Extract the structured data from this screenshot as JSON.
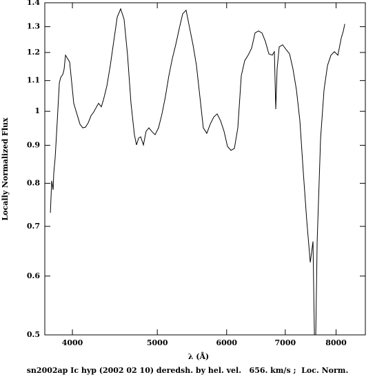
{
  "chart_data": {
    "type": "line",
    "caption": "sn2002ap Ic hyp (2002 02 10) deredsh. by hel. vel.   656. km/s ;  Loc. Norm.",
    "x_label": "λ (Å)",
    "y_label": "Locally Normalized Flux",
    "xscale": "log",
    "yscale": "log",
    "color": "#000000",
    "xlim": [
      3720,
      8640
    ],
    "ylim": [
      0.5,
      1.4
    ],
    "xticks": [
      4000,
      5000,
      6000,
      7000,
      8000
    ],
    "yticks": [
      0.5,
      0.6,
      0.7,
      0.8,
      0.9,
      1,
      1.1,
      1.2,
      1.3,
      1.4
    ],
    "x": [
      3775,
      3788,
      3802,
      3809,
      3823,
      3844,
      3865,
      3879,
      3900,
      3914,
      3928,
      3950,
      3971,
      3993,
      4014,
      4036,
      4058,
      4080,
      4110,
      4140,
      4170,
      4200,
      4231,
      4262,
      4285,
      4316,
      4340,
      4379,
      4419,
      4459,
      4500,
      4541,
      4582,
      4624,
      4666,
      4708,
      4734,
      4760,
      4786,
      4821,
      4855,
      4891,
      4926,
      4971,
      5016,
      5062,
      5108,
      5154,
      5201,
      5248,
      5296,
      5345,
      5393,
      5442,
      5492,
      5542,
      5592,
      5643,
      5695,
      5747,
      5799,
      5852,
      5905,
      5959,
      6013,
      6068,
      6123,
      6179,
      6235,
      6292,
      6349,
      6407,
      6465,
      6524,
      6584,
      6643,
      6704,
      6765,
      6802,
      6827,
      6851,
      6889,
      6951,
      7015,
      7079,
      7143,
      7208,
      7274,
      7340,
      7407,
      7475,
      7502,
      7529,
      7557,
      7584,
      7612,
      7681,
      7751,
      7822,
      7893,
      7965,
      8038,
      8111,
      8155,
      8185
    ],
    "values": [
      0.73,
      0.806,
      0.784,
      0.827,
      0.867,
      0.971,
      1.092,
      1.111,
      1.121,
      1.14,
      1.19,
      1.177,
      1.165,
      1.092,
      1.025,
      1.003,
      0.982,
      0.961,
      0.95,
      0.952,
      0.965,
      0.986,
      0.998,
      1.014,
      1.025,
      1.014,
      1.036,
      1.081,
      1.153,
      1.242,
      1.339,
      1.374,
      1.33,
      1.19,
      1.025,
      0.93,
      0.901,
      0.92,
      0.924,
      0.901,
      0.94,
      0.95,
      0.94,
      0.93,
      0.95,
      0.992,
      1.047,
      1.116,
      1.177,
      1.229,
      1.291,
      1.353,
      1.368,
      1.297,
      1.229,
      1.153,
      1.047,
      0.95,
      0.934,
      0.961,
      0.982,
      0.992,
      0.971,
      0.94,
      0.897,
      0.886,
      0.891,
      0.95,
      1.116,
      1.17,
      1.19,
      1.216,
      1.275,
      1.283,
      1.275,
      1.242,
      1.195,
      1.19,
      1.203,
      1.007,
      1.14,
      1.221,
      1.229,
      1.211,
      1.195,
      1.14,
      1.069,
      0.971,
      0.827,
      0.712,
      0.626,
      0.646,
      0.668,
      0.5,
      0.5,
      0.668,
      0.92,
      1.069,
      1.153,
      1.19,
      1.203,
      1.19,
      1.256,
      1.283,
      1.311
    ]
  }
}
